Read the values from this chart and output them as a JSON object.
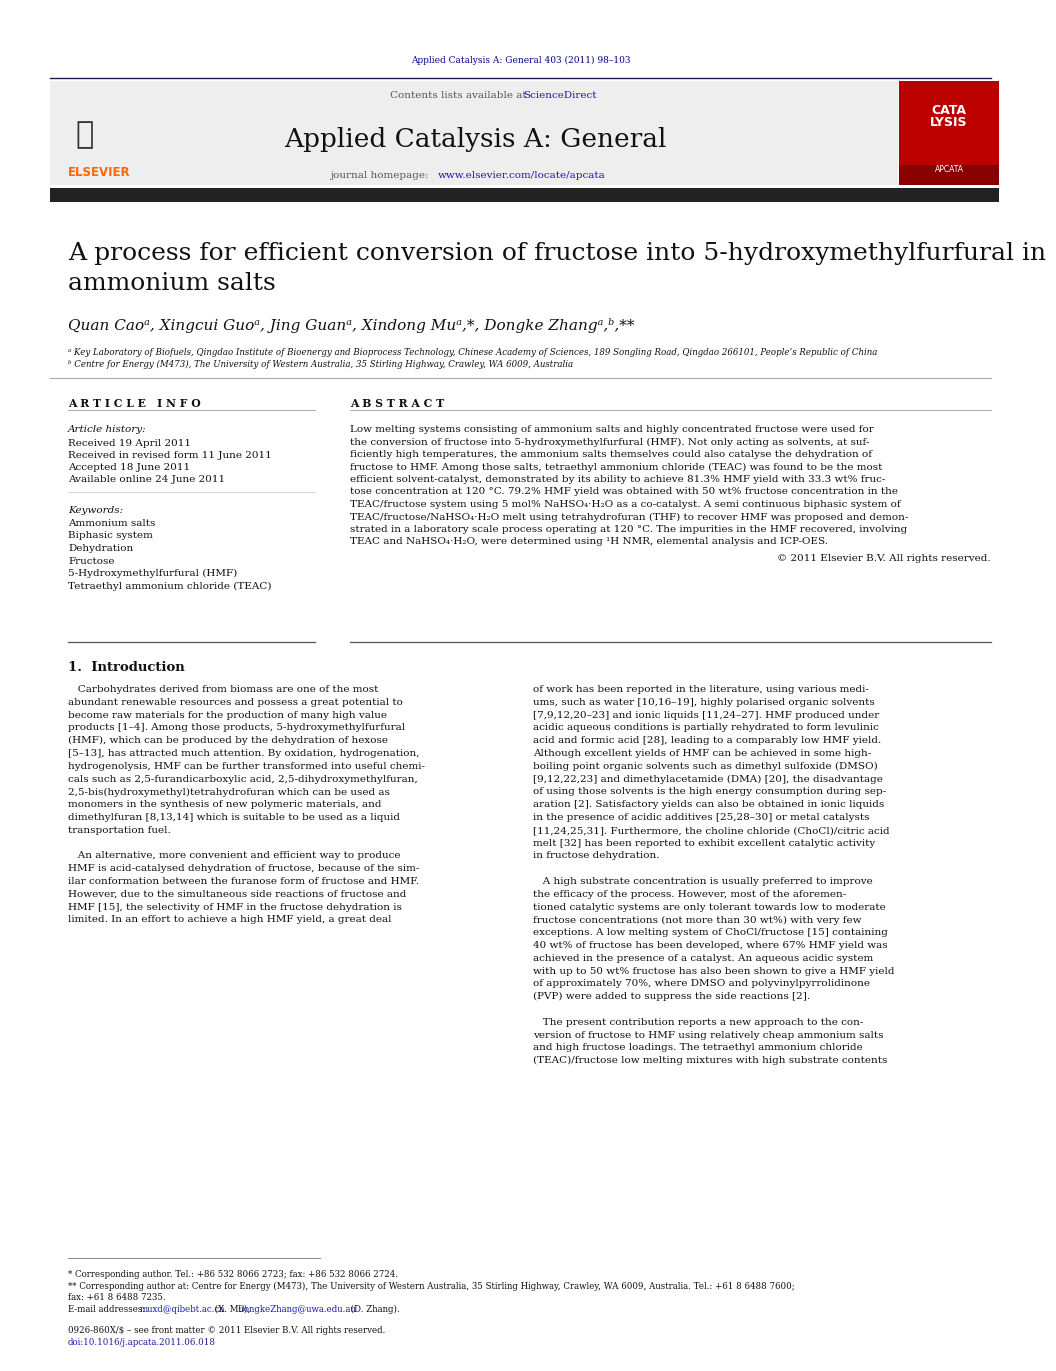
{
  "journal_ref": "Applied Catalysis A: General 403 (2011) 98–103",
  "contents_line": "Contents lists available at ",
  "science_direct": "ScienceDirect",
  "journal_name": "Applied Catalysis A: General",
  "journal_homepage_prefix": "journal homepage: ",
  "journal_homepage_url": "www.elsevier.com/locate/apcata",
  "title_line1": "A process for efficient conversion of fructose into 5-hydroxymethylfurfural in",
  "title_line2": "ammonium salts",
  "author_line": "Quan Caoᵃ, Xingcui Guoᵃ, Jing Guanᵃ, Xindong Muᵃ,*, Dongke Zhangᵃ,ᵇ,**",
  "affil_a": "ᵃ Key Laboratory of Biofuels, Qingdao Institute of Bioenergy and Bioprocess Technology, Chinese Academy of Sciences, 189 Songling Road, Qingdao 266101, People’s Republic of China",
  "affil_b": "ᵇ Centre for Energy (M473), The University of Western Australia, 35 Stirling Highway, Crawley, WA 6009, Australia",
  "article_info_header": "A R T I C L E   I N F O",
  "abstract_header": "A B S T R A C T",
  "article_history_label": "Article history:",
  "received": "Received 19 April 2011",
  "received_revised": "Received in revised form 11 June 2011",
  "accepted": "Accepted 18 June 2011",
  "available": "Available online 24 June 2011",
  "keywords_label": "Keywords:",
  "keywords": [
    "Ammonium salts",
    "Biphasic system",
    "Dehydration",
    "Fructose",
    "5-Hydroxymethylfurfural (HMF)",
    "Tetraethyl ammonium chloride (TEAC)"
  ],
  "abstract_lines": [
    "Low melting systems consisting of ammonium salts and highly concentrated fructose were used for",
    "the conversion of fructose into 5-hydroxymethylfurfural (HMF). Not only acting as solvents, at suf-",
    "ficiently high temperatures, the ammonium salts themselves could also catalyse the dehydration of",
    "fructose to HMF. Among those salts, tetraethyl ammonium chloride (TEAC) was found to be the most",
    "efficient solvent-catalyst, demonstrated by its ability to achieve 81.3% HMF yield with 33.3 wt% fruc-",
    "tose concentration at 120 °C. 79.2% HMF yield was obtained with 50 wt% fructose concentration in the",
    "TEAC/fructose system using 5 mol% NaHSO₄·H₂O as a co-catalyst. A semi continuous biphasic system of",
    "TEAC/fructose/NaHSO₄·H₂O melt using tetrahydrofuran (THF) to recover HMF was proposed and demon-",
    "strated in a laboratory scale process operating at 120 °C. The impurities in the HMF recovered, involving",
    "TEAC and NaHSO₄·H₂O, were determined using ¹H NMR, elemental analysis and ICP-OES."
  ],
  "abstract_copyright": "© 2011 Elsevier B.V. All rights reserved.",
  "intro_header": "1.  Introduction",
  "col1_lines": [
    "   Carbohydrates derived from biomass are one of the most",
    "abundant renewable resources and possess a great potential to",
    "become raw materials for the production of many high value",
    "products [1–4]. Among those products, 5-hydroxymethylfurfural",
    "(HMF), which can be produced by the dehydration of hexose",
    "[5–13], has attracted much attention. By oxidation, hydrogenation,",
    "hydrogenolysis, HMF can be further transformed into useful chemi-",
    "cals such as 2,5-furandicarboxylic acid, 2,5-dihydroxymethylfuran,",
    "2,5-bis(hydroxymethyl)tetrahydrofuran which can be used as",
    "monomers in the synthesis of new polymeric materials, and",
    "dimethylfuran [8,13,14] which is suitable to be used as a liquid",
    "transportation fuel.",
    "",
    "   An alternative, more convenient and efficient way to produce",
    "HMF is acid-catalysed dehydration of fructose, because of the sim-",
    "ilar conformation between the furanose form of fructose and HMF.",
    "However, due to the simultaneous side reactions of fructose and",
    "HMF [15], the selectivity of HMF in the fructose dehydration is",
    "limited. In an effort to achieve a high HMF yield, a great deal"
  ],
  "col2_lines": [
    "of work has been reported in the literature, using various medi-",
    "ums, such as water [10,16–19], highly polarised organic solvents",
    "[7,9,12,20–23] and ionic liquids [11,24–27]. HMF produced under",
    "acidic aqueous conditions is partially rehydrated to form levulinic",
    "acid and formic acid [28], leading to a comparably low HMF yield.",
    "Although excellent yields of HMF can be achieved in some high-",
    "boiling point organic solvents such as dimethyl sulfoxide (DMSO)",
    "[9,12,22,23] and dimethylacetamide (DMA) [20], the disadvantage",
    "of using those solvents is the high energy consumption during sep-",
    "aration [2]. Satisfactory yields can also be obtained in ionic liquids",
    "in the presence of acidic additives [25,28–30] or metal catalysts",
    "[11,24,25,31]. Furthermore, the choline chloride (ChoCl)/citric acid",
    "melt [32] has been reported to exhibit excellent catalytic activity",
    "in fructose dehydration.",
    "",
    "   A high substrate concentration is usually preferred to improve",
    "the efficacy of the process. However, most of the aforemen-",
    "tioned catalytic systems are only tolerant towards low to moderate",
    "fructose concentrations (not more than 30 wt%) with very few",
    "exceptions. A low melting system of ChoCl/fructose [15] containing",
    "40 wt% of fructose has been developed, where 67% HMF yield was",
    "achieved in the presence of a catalyst. An aqueous acidic system",
    "with up to 50 wt% fructose has also been shown to give a HMF yield",
    "of approximately 70%, where DMSO and polyvinylpyrrolidinone",
    "(PVP) were added to suppress the side reactions [2].",
    "",
    "   The present contribution reports a new approach to the con-",
    "version of fructose to HMF using relatively cheap ammonium salts",
    "and high fructose loadings. The tetraethyl ammonium chloride",
    "(TEAC)/fructose low melting mixtures with high substrate contents"
  ],
  "footnote1": "* Corresponding author. Tel.: +86 532 8066 2723; fax: +86 532 8066 2724.",
  "footnote2a": "** Corresponding author at: Centre for Energy (M473), The University of Western Australia, 35 Stirling Highway, Crawley, WA 6009, Australia. Tel.: +61 8 6488 7600;",
  "footnote2b": "fax: +61 8 6488 7235.",
  "footnote3a": "E-mail addresses: ",
  "footnote3b": "muxd@qibebt.ac.cn",
  "footnote3c": " (X. Mu), ",
  "footnote3d": "DongkeZhang@uwa.edu.au",
  "footnote3e": " (D. Zhang).",
  "issn_line": "0926-860X/$ – see front matter © 2011 Elsevier B.V. All rights reserved.",
  "doi_line": "doi:10.1016/j.apcata.2011.06.018",
  "bg_color": "#ffffff",
  "gray_header_bg": "#eeeeee",
  "dark_bar_color": "#222222",
  "elsevier_orange": "#ff6600",
  "link_color": "#1a1aaa",
  "dark_blue": "#00008b",
  "text_color": "#111111",
  "gray_text": "#555555"
}
